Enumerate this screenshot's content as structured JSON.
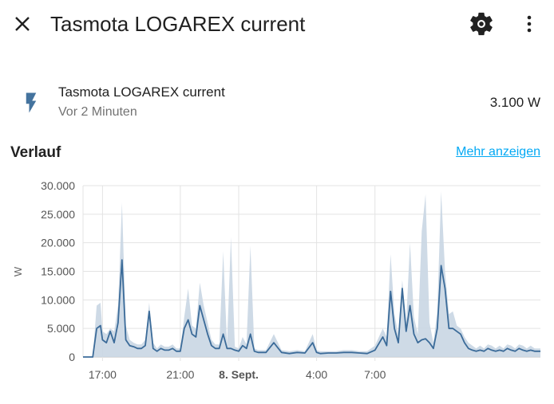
{
  "header": {
    "title": "Tasmota LOGAREX current",
    "close_icon": "close-icon",
    "settings_icon": "gear-icon",
    "more_icon": "more-vertical-icon"
  },
  "entity": {
    "icon": "flash-icon",
    "name": "Tasmota LOGAREX current",
    "last_changed": "Vor 2 Minuten",
    "value": "3.100 W"
  },
  "history": {
    "title": "Verlauf",
    "more_link": "Mehr anzeigen"
  },
  "colors": {
    "accent_link": "#03a9f4",
    "line": "#3b6b99",
    "band": "#c9d6e3",
    "icon": "#44739e"
  },
  "chart_data": {
    "type": "area",
    "ylabel": "W",
    "ylim": [
      0,
      30000
    ],
    "y_ticks": [
      "0",
      "5.000",
      "10.000",
      "15.000",
      "20.000",
      "25.000",
      "30.000"
    ],
    "x_ticks": [
      {
        "label": "17:00",
        "hour": 17,
        "bold": false
      },
      {
        "label": "21:00",
        "hour": 21,
        "bold": false
      },
      {
        "label": "8. Sept.",
        "hour": 24,
        "bold": true
      },
      {
        "label": "4:00",
        "hour": 28,
        "bold": false
      },
      {
        "label": "7:00",
        "hour": 31,
        "bold": false
      }
    ],
    "x_range_hours": [
      16.0,
      39.5
    ],
    "grid": true,
    "series": [
      {
        "x_hours": [
          16.0,
          16.1,
          16.3,
          16.5,
          16.7,
          16.9,
          17.0,
          17.2,
          17.4,
          17.6,
          17.8,
          18.0,
          18.2,
          18.4,
          18.6,
          18.8,
          19.0,
          19.2,
          19.4,
          19.6,
          19.8,
          20.0,
          20.2,
          20.4,
          20.6,
          20.8,
          21.0,
          21.2,
          21.4,
          21.6,
          21.8,
          22.0,
          22.2,
          22.4,
          22.6,
          22.8,
          23.0,
          23.2,
          23.4,
          23.6,
          23.8,
          24.0,
          24.2,
          24.4,
          24.6,
          24.8,
          25.0,
          25.4,
          25.8,
          26.2,
          26.6,
          27.0,
          27.4,
          27.8,
          28.0,
          28.2,
          28.6,
          29.0,
          29.4,
          29.8,
          30.2,
          30.6,
          31.0,
          31.4,
          31.6,
          31.8,
          32.0,
          32.2,
          32.4,
          32.6,
          32.8,
          33.0,
          33.2,
          33.4,
          33.6,
          33.8,
          34.0,
          34.2,
          34.4,
          34.6,
          34.8,
          35.0,
          35.2,
          35.4,
          35.6,
          35.8,
          36.0,
          36.2,
          36.4,
          36.6,
          36.8,
          37.0,
          37.2,
          37.4,
          37.6,
          37.8,
          38.0,
          38.2,
          38.4,
          38.6,
          38.8,
          39.0,
          39.2,
          39.5
        ],
        "values": [
          0,
          0,
          0,
          0,
          5000,
          5500,
          3000,
          2500,
          4500,
          2500,
          6000,
          17000,
          3000,
          2000,
          1800,
          1500,
          1500,
          2000,
          8000,
          1500,
          1000,
          1500,
          1200,
          1200,
          1500,
          1000,
          1000,
          5000,
          6500,
          4000,
          3500,
          9000,
          6500,
          4000,
          2000,
          1500,
          1500,
          4000,
          1500,
          1500,
          1200,
          1000,
          2000,
          1500,
          4000,
          1000,
          800,
          800,
          2500,
          800,
          600,
          800,
          700,
          2500,
          800,
          600,
          700,
          700,
          800,
          800,
          700,
          600,
          1200,
          3500,
          2000,
          11500,
          5000,
          2500,
          12000,
          4500,
          9000,
          4000,
          2500,
          3000,
          3200,
          2500,
          1500,
          5000,
          16000,
          12000,
          5000,
          5000,
          4500,
          4000,
          2500,
          1500,
          1200,
          1000,
          1200,
          1000,
          1500,
          1200,
          1000,
          1200,
          1000,
          1500,
          1200,
          1000,
          1500,
          1200,
          1000,
          1200,
          1000,
          1000
        ],
        "max_values": [
          0,
          0,
          0,
          0,
          9000,
          9500,
          4500,
          4000,
          5000,
          4500,
          9000,
          27000,
          5500,
          3000,
          2500,
          2200,
          2200,
          3000,
          9500,
          2500,
          1500,
          2200,
          1800,
          1800,
          2200,
          1500,
          1500,
          7000,
          12000,
          5500,
          5000,
          13000,
          9000,
          6000,
          3000,
          2200,
          2200,
          18500,
          2200,
          21000,
          1800,
          1500,
          3500,
          2200,
          19500,
          1500,
          1200,
          1200,
          4000,
          1200,
          1000,
          1200,
          1000,
          4000,
          1200,
          1000,
          1000,
          1000,
          1200,
          1200,
          1000,
          1000,
          2000,
          5000,
          3500,
          18000,
          7500,
          4000,
          13500,
          6000,
          20000,
          7000,
          4000,
          22000,
          28500,
          6000,
          2500,
          8000,
          29000,
          15000,
          7500,
          8000,
          5500,
          5000,
          3500,
          2500,
          2000,
          1500,
          2000,
          1500,
          2200,
          2000,
          1500,
          2000,
          1500,
          2200,
          2000,
          1500,
          2200,
          2000,
          1500,
          2000,
          1500,
          1500
        ]
      }
    ]
  }
}
